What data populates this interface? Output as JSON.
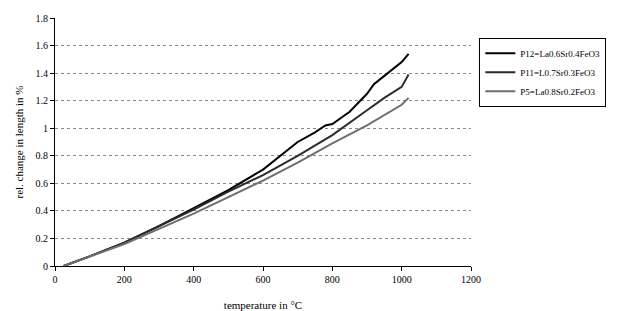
{
  "chart_data": {
    "type": "line",
    "x_label": "temperature in °C",
    "y_label": "rel. change in length in %",
    "xlim": [
      0,
      1200
    ],
    "xticks": [
      0,
      200,
      400,
      600,
      800,
      1000,
      1200
    ],
    "ylim": [
      0,
      1.8
    ],
    "yticks": [
      0,
      0.2,
      0.4,
      0.6,
      0.8,
      1,
      1.2,
      1.4,
      1.6,
      1.8
    ],
    "grid": true,
    "legend": "right",
    "series": [
      {
        "name": "P12=La0.6Sr0.4FeO3",
        "color": "#000000",
        "x": [
          25,
          100,
          200,
          300,
          400,
          500,
          600,
          650,
          700,
          750,
          780,
          800,
          850,
          900,
          920,
          950,
          1000,
          1020
        ],
        "values": [
          0,
          0.07,
          0.17,
          0.29,
          0.42,
          0.55,
          0.7,
          0.8,
          0.9,
          0.97,
          1.02,
          1.03,
          1.12,
          1.25,
          1.32,
          1.38,
          1.48,
          1.54
        ]
      },
      {
        "name": "P11=L0.7Sr0.3FeO3",
        "color": "#2b2b2b",
        "x": [
          25,
          100,
          200,
          300,
          400,
          500,
          600,
          700,
          800,
          900,
          950,
          1000,
          1020
        ],
        "values": [
          0,
          0.07,
          0.17,
          0.29,
          0.41,
          0.54,
          0.66,
          0.8,
          0.95,
          1.13,
          1.22,
          1.3,
          1.39
        ]
      },
      {
        "name": "P5=La0.8Sr0.2FeO3",
        "color": "#6e6e6e",
        "x": [
          25,
          100,
          200,
          300,
          400,
          500,
          600,
          700,
          800,
          900,
          1000,
          1020
        ],
        "values": [
          0,
          0.07,
          0.16,
          0.27,
          0.38,
          0.5,
          0.62,
          0.75,
          0.89,
          1.02,
          1.17,
          1.22
        ]
      }
    ]
  }
}
